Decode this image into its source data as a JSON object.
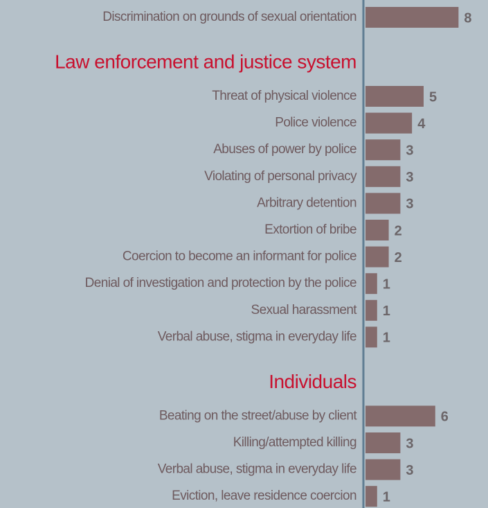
{
  "chart_data": {
    "type": "bar",
    "orientation": "horizontal",
    "color": "#846b6c",
    "groups": [
      {
        "categories": [
          "Discrimination on grounds of sexual orientation"
        ],
        "values": [
          8
        ]
      },
      {
        "title": "Law enforcement and  justice system",
        "categories": [
          "Threat of physical violence",
          "Police violence",
          "Abuses of power by police",
          "Violating of personal privacy",
          "Arbitrary detention",
          "Extortion of bribe",
          "Coercion to become an informant for police",
          "Denial of investigation and protection by the police",
          "Sexual harassment",
          "Verbal abuse, stigma in everyday life"
        ],
        "values": [
          5,
          4,
          3,
          3,
          3,
          2,
          2,
          1,
          1,
          1
        ]
      },
      {
        "title": "Individuals",
        "categories": [
          "Beating on the street/abuse by client",
          "Killing/attempted killing",
          "Verbal abuse, stigma in everyday life",
          "Eviction, leave residence coercion"
        ],
        "values": [
          6,
          3,
          3,
          1
        ]
      }
    ]
  }
}
